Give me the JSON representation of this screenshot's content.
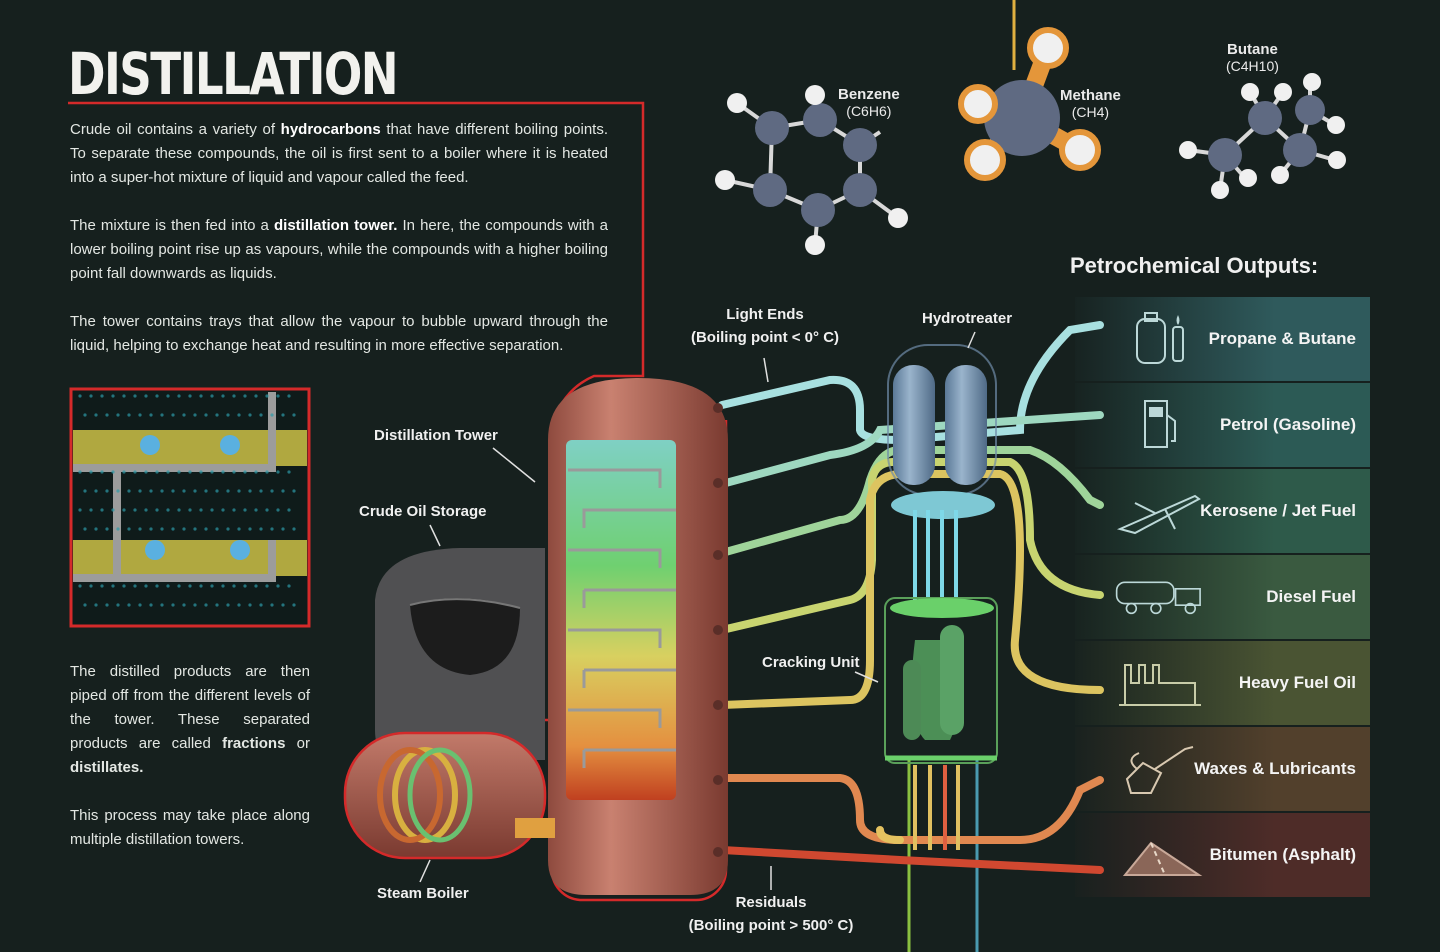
{
  "title": "DISTILLATION",
  "paragraphs": {
    "p1_a": "Crude oil contains a variety of ",
    "p1_b": "hydrocarbons",
    "p1_c": " that have different boiling points. To separate these compounds, the oil is first sent to a boiler where it is heated into a super-hot mixture of liquid and vapour called the feed.",
    "p2_a": "The mixture is then fed into a ",
    "p2_b": "distillation tower.",
    "p2_c": " In here, the compounds with a lower boiling point rise up as vapours, while the compounds with a higher boiling point fall downwards as liquids.",
    "p3": "The tower contains trays that allow the vapour to bubble upward through the liquid, helping to exchange heat and resulting in more effective separation.",
    "p4_a": "The distilled products are then piped off from the different levels of the tower. These separated products are called ",
    "p4_b": "fractions",
    "p4_c": " or ",
    "p4_d": "distillates.",
    "p5": "This process may take place along multiple distillation towers."
  },
  "molecules": {
    "benzene": {
      "name": "Benzene",
      "formula": "(C6H6)"
    },
    "methane": {
      "name": "Methane",
      "formula": "(CH4)"
    },
    "butane": {
      "name": "Butane",
      "formula": "(C4H10)"
    }
  },
  "labels": {
    "light_ends_1": "Light Ends",
    "light_ends_2": "(Boiling point < 0° C)",
    "hydrotreater": "Hydrotreater",
    "distillation_tower": "Distillation Tower",
    "crude_oil_storage": "Crude Oil Storage",
    "cracking_unit": "Cracking Unit",
    "steam_boiler": "Steam Boiler",
    "residuals_1": "Residuals",
    "residuals_2": "(Boiling point  > 500° C)"
  },
  "outputs": {
    "title": "Petrochemical Outputs:",
    "items": [
      {
        "label": "Propane & Butane",
        "icon": "gas-canister-lighter-icon",
        "color": "#2f5a5c"
      },
      {
        "label": "Petrol (Gasoline)",
        "icon": "fuel-pump-icon",
        "color": "#2c5a55"
      },
      {
        "label": "Kerosene / Jet Fuel",
        "icon": "airplane-icon",
        "color": "#2e5a4a"
      },
      {
        "label": "Diesel Fuel",
        "icon": "tanker-truck-icon",
        "color": "#3a5a40"
      },
      {
        "label": "Heavy Fuel Oil",
        "icon": "factory-icon",
        "color": "#4a5433"
      },
      {
        "label": "Waxes & Lubricants",
        "icon": "oil-can-icon",
        "color": "#52402c"
      },
      {
        "label": "Bitumen (Asphalt)",
        "icon": "road-icon",
        "color": "#4e2c28"
      }
    ]
  },
  "colors": {
    "accent_red": "#d42a2a",
    "tower": "#b86a5a",
    "storage": "#4a4a4c",
    "hydrotreater": "#6f8ca8",
    "cracking": "#5aa05a"
  }
}
